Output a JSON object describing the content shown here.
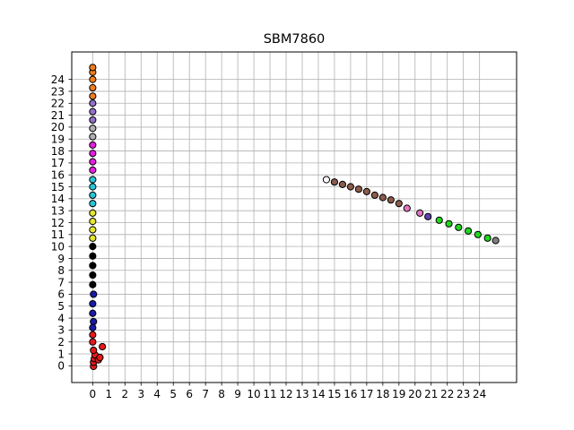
{
  "chart_data": {
    "type": "scatter",
    "title": "SBM7860",
    "xlabel": "",
    "ylabel": "",
    "xlim": [
      -1.3,
      26.3
    ],
    "ylim": [
      -1.4,
      26.3
    ],
    "xticks": [
      "0",
      "1",
      "2",
      "3",
      "4",
      "5",
      "6",
      "7",
      "8",
      "9",
      "10",
      "11",
      "12",
      "13",
      "14",
      "15",
      "16",
      "17",
      "18",
      "19",
      "20",
      "21",
      "22",
      "23",
      "24"
    ],
    "yticks": [
      "0",
      "1",
      "2",
      "3",
      "4",
      "5",
      "6",
      "7",
      "8",
      "9",
      "10",
      "11",
      "12",
      "13",
      "14",
      "15",
      "16",
      "17",
      "18",
      "19",
      "20",
      "21",
      "22",
      "23",
      "24"
    ],
    "grid": true,
    "legend": "none",
    "series": [
      {
        "color": "#e41a1c",
        "points": [
          [
            0.05,
            -0.05
          ],
          [
            0.05,
            0.3
          ],
          [
            0.1,
            0.6
          ],
          [
            0.15,
            0.9
          ],
          [
            0.35,
            0.5
          ],
          [
            0.45,
            0.7
          ],
          [
            0.6,
            1.6
          ],
          [
            0.05,
            1.3
          ],
          [
            0.0,
            2.0
          ],
          [
            0.0,
            2.6
          ]
        ]
      },
      {
        "color": "#1a1aa6",
        "points": [
          [
            0.05,
            3.7
          ],
          [
            0.0,
            4.4
          ],
          [
            0.0,
            5.2
          ],
          [
            0.05,
            6.0
          ],
          [
            0.0,
            3.2
          ]
        ]
      },
      {
        "color": "#000000",
        "points": [
          [
            0.0,
            6.8
          ],
          [
            0.0,
            7.6
          ],
          [
            0.0,
            8.4
          ],
          [
            0.0,
            9.2
          ],
          [
            0.0,
            10.0
          ]
        ]
      },
      {
        "color": "#e6e62e",
        "points": [
          [
            0.0,
            10.7
          ],
          [
            0.0,
            11.4
          ],
          [
            0.0,
            12.1
          ],
          [
            0.0,
            12.8
          ]
        ]
      },
      {
        "color": "#24c8d8",
        "points": [
          [
            0.0,
            13.6
          ],
          [
            0.0,
            14.3
          ],
          [
            0.0,
            15.0
          ],
          [
            0.0,
            15.6
          ]
        ]
      },
      {
        "color": "#e61ee0",
        "points": [
          [
            0.0,
            16.4
          ],
          [
            0.0,
            17.1
          ],
          [
            0.0,
            17.8
          ],
          [
            0.0,
            18.5
          ]
        ]
      },
      {
        "color": "#b0b0b0",
        "points": [
          [
            0.0,
            19.2
          ],
          [
            0.0,
            19.9
          ]
        ]
      },
      {
        "color": "#9370c8",
        "points": [
          [
            0.0,
            20.6
          ],
          [
            0.0,
            21.3
          ],
          [
            0.0,
            22.0
          ]
        ]
      },
      {
        "color": "#f07d1e",
        "points": [
          [
            0.0,
            22.6
          ],
          [
            0.0,
            23.3
          ],
          [
            0.0,
            24.0
          ],
          [
            0.0,
            24.6
          ],
          [
            0.0,
            25.0
          ]
        ]
      },
      {
        "color": "#ffffff",
        "points": [
          [
            14.5,
            15.6
          ]
        ]
      },
      {
        "color": "#8b5a4a",
        "points": [
          [
            15.0,
            15.4
          ],
          [
            15.5,
            15.2
          ],
          [
            16.0,
            15.0
          ],
          [
            16.5,
            14.8
          ],
          [
            17.0,
            14.6
          ],
          [
            17.5,
            14.3
          ],
          [
            18.0,
            14.1
          ],
          [
            18.5,
            13.9
          ],
          [
            19.0,
            13.6
          ]
        ]
      },
      {
        "color": "#e377c2",
        "points": [
          [
            19.5,
            13.2
          ],
          [
            20.3,
            12.8
          ]
        ]
      },
      {
        "color": "#6040b0",
        "points": [
          [
            20.8,
            12.5
          ]
        ]
      },
      {
        "color": "#1ed81e",
        "points": [
          [
            21.5,
            12.2
          ],
          [
            22.1,
            11.9
          ],
          [
            22.7,
            11.6
          ],
          [
            23.3,
            11.3
          ],
          [
            23.9,
            11.0
          ],
          [
            24.5,
            10.7
          ]
        ]
      },
      {
        "color": "#808080",
        "points": [
          [
            25.0,
            10.5
          ]
        ]
      }
    ]
  }
}
